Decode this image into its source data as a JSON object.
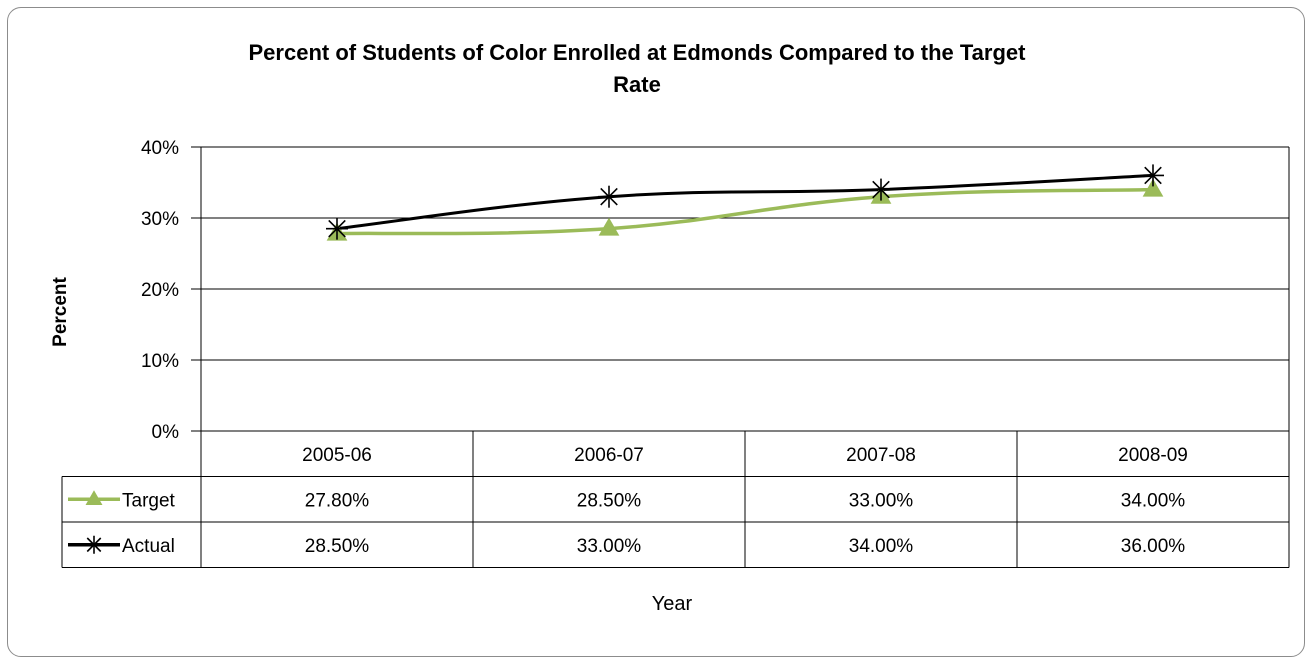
{
  "chart_data": {
    "type": "line",
    "title": "Percent of Students of Color Enrolled at Edmonds Compared to the Target Rate",
    "title_lines": [
      "Percent of Students of Color Enrolled at Edmonds Compared to the Target",
      "Rate"
    ],
    "xlabel": "Year",
    "ylabel": "Percent",
    "categories": [
      "2005-06",
      "2006-07",
      "2007-08",
      "2008-09"
    ],
    "y_ticks": [
      "0%",
      "10%",
      "20%",
      "30%",
      "40%"
    ],
    "ylim": [
      0,
      40
    ],
    "grid": true,
    "legend": "data-table",
    "series": [
      {
        "name": "Target",
        "values": [
          27.8,
          28.5,
          33.0,
          34.0
        ],
        "labels": [
          "27.80%",
          "28.50%",
          "33.00%",
          "34.00%"
        ],
        "color": "#9bbb59",
        "marker": "triangle"
      },
      {
        "name": "Actual",
        "values": [
          28.5,
          33.0,
          34.0,
          36.0
        ],
        "labels": [
          "28.50%",
          "33.00%",
          "34.00%",
          "36.00%"
        ],
        "color": "#000000",
        "marker": "star"
      }
    ]
  }
}
